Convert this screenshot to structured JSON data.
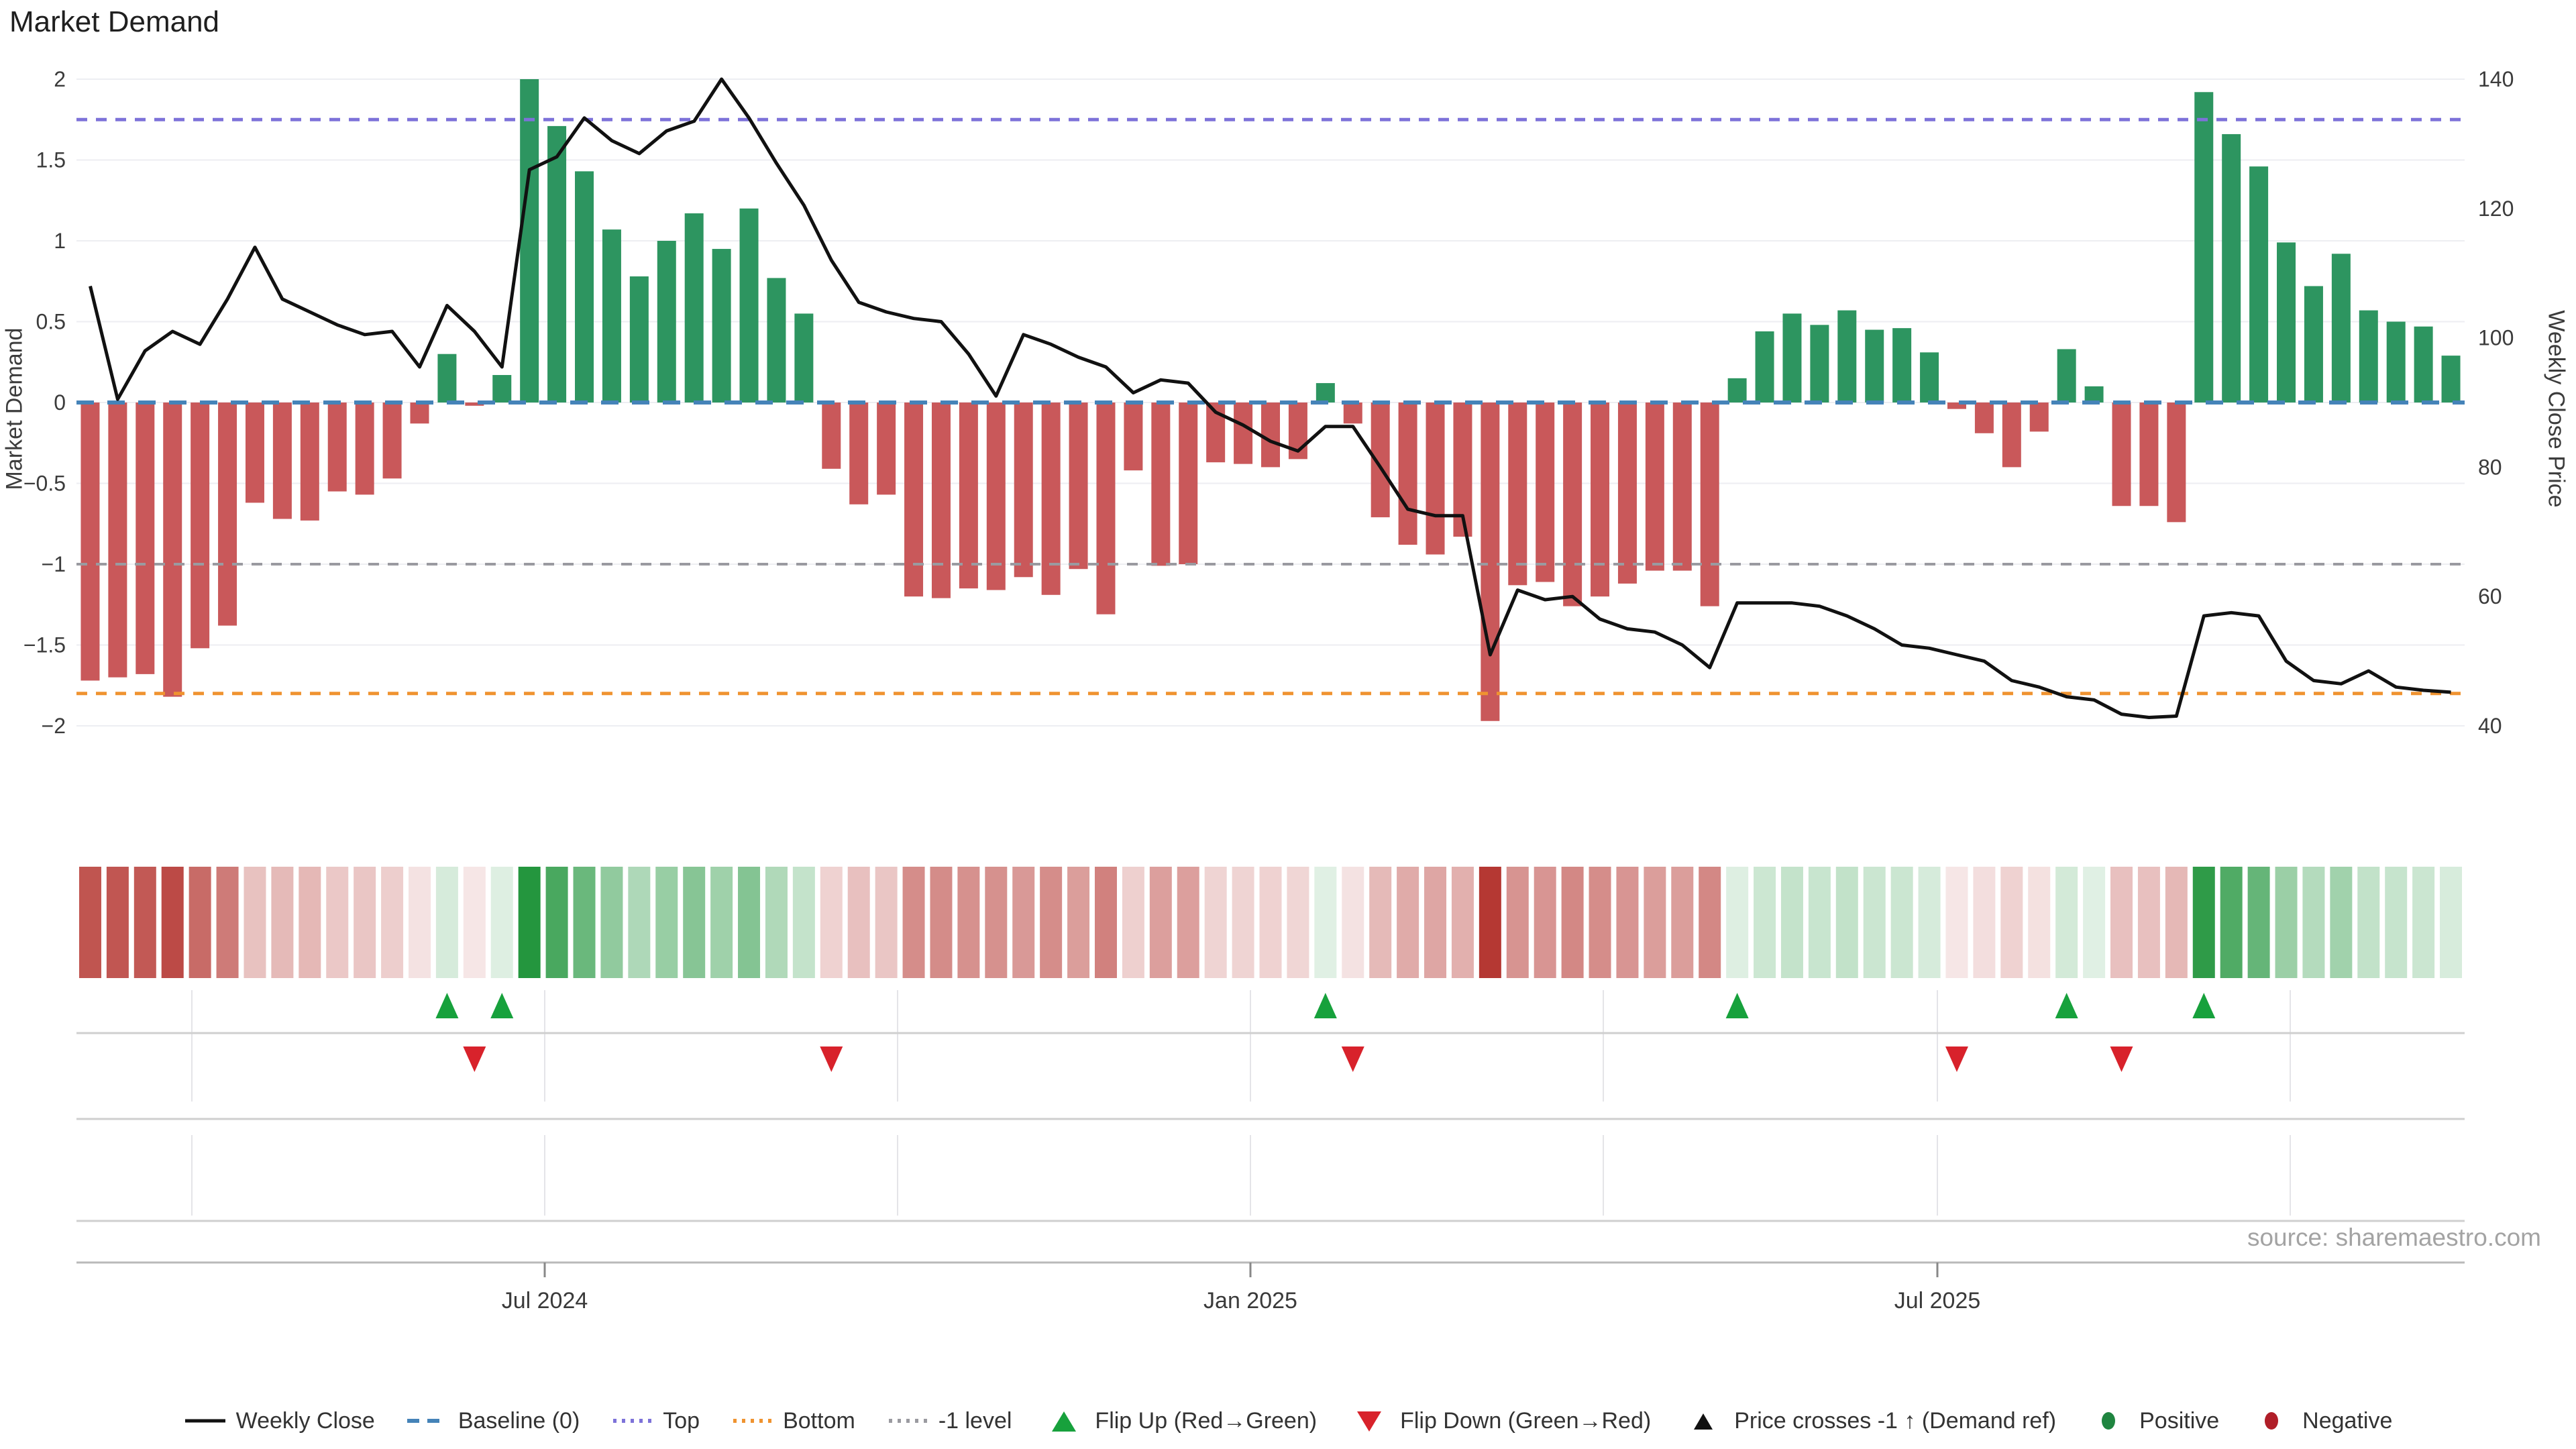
{
  "title": "Market Demand",
  "source": "source: sharemaestro.com",
  "axes": {
    "left_label": "Market Demand",
    "right_label": "Weekly Close Price",
    "left_ticks": [
      "2",
      "1.5",
      "1",
      "0.5",
      "0",
      "−0.5",
      "−1",
      "−1.5",
      "−2"
    ],
    "left_tick_values": [
      2,
      1.5,
      1,
      0.5,
      0,
      -0.5,
      -1,
      -1.5,
      -2
    ],
    "right_ticks": [
      "140",
      "120",
      "100",
      "80",
      "60",
      "40"
    ],
    "right_tick_values": [
      140,
      120,
      100,
      80,
      60,
      40
    ],
    "x_ticks": [
      {
        "label": "Jul 2024",
        "x": 812
      },
      {
        "label": "Jan 2025",
        "x": 1864
      },
      {
        "label": "Jul 2025",
        "x": 2888
      }
    ],
    "quarter_gridlines_x": [
      286,
      812,
      1338,
      1864,
      2390,
      2888,
      3414
    ]
  },
  "colors": {
    "bar_positive": "#2d9560",
    "bar_negative": "#c9585a",
    "price_line": "#111111",
    "baseline": "#4583b8",
    "top_line": "#7d72d9",
    "bottom_line": "#ef9330",
    "minus1_line": "#9a9aa0",
    "gridline": "#edeef2",
    "separator": "#cfcfcf",
    "axis_line": "#b9b9b9",
    "flip_up": "#17a13c",
    "flip_down": "#d8222b",
    "positive_dot": "#1f8540",
    "negative_dot": "#b01e28",
    "heat_green_rgb": "36,150,62",
    "heat_red_rgb": "180,52,47"
  },
  "legend": {
    "items": [
      {
        "label": "Weekly Close",
        "swatch": "line",
        "color": "#111111"
      },
      {
        "label": "Baseline (0)",
        "swatch": "dash",
        "color": "#4583b8"
      },
      {
        "label": "Top",
        "swatch": "dots",
        "color": "#7d72d9"
      },
      {
        "label": "Bottom",
        "swatch": "dots",
        "color": "#ef9330"
      },
      {
        "label": "-1 level",
        "swatch": "dots",
        "color": "#9a9aa0"
      },
      {
        "label": "Flip Up (Red→Green)",
        "swatch": "tri-up",
        "color": "#17a13c"
      },
      {
        "label": "Flip Down (Green→Red)",
        "swatch": "tri-down",
        "color": "#d8222b"
      },
      {
        "label": "Price crosses -1 ↑ (Demand ref)",
        "swatch": "tri-up-small",
        "color": "#111111"
      },
      {
        "label": "Positive",
        "swatch": "dot",
        "color": "#1f8540"
      },
      {
        "label": "Negative",
        "swatch": "dot",
        "color": "#b01e28"
      }
    ]
  },
  "chart_data": {
    "type": "bar",
    "subtype": "combo bar+line+heatmap+event-markers",
    "title": "Market Demand",
    "xlabel": "",
    "ylabel": "Market Demand",
    "y2label": "Weekly Close Price",
    "x_unit": "week",
    "n_weeks": 87,
    "x_tick_labels": [
      "Jul 2024",
      "Jan 2025",
      "Jul 2025"
    ],
    "demand_axis_range": [
      -2.05,
      2.05
    ],
    "price_axis_range": [
      33,
      143
    ],
    "grid": "horizontal every 0.5 demand units; quarterly vertical lines in lower panels",
    "legend_position": "bottom center",
    "ref_lines": {
      "baseline": 0,
      "top": 1.75,
      "bottom": -1.8,
      "minus1": -1
    },
    "series": [
      {
        "name": "Market Demand (bars)",
        "axis": "left",
        "values": [
          -1.72,
          -1.7,
          -1.68,
          -1.82,
          -1.52,
          -1.38,
          -0.62,
          -0.72,
          -0.73,
          -0.55,
          -0.57,
          -0.47,
          -0.13,
          0.3,
          -0.02,
          0.17,
          2.0,
          1.71,
          1.43,
          1.07,
          0.78,
          1.0,
          1.17,
          0.95,
          1.2,
          0.77,
          0.55,
          -0.41,
          -0.63,
          -0.57,
          -1.2,
          -1.21,
          -1.15,
          -1.16,
          -1.08,
          -1.19,
          -1.03,
          -1.31,
          -0.42,
          -1.01,
          -1.0,
          -0.37,
          -0.38,
          -0.4,
          -0.35,
          0.12,
          -0.13,
          -0.71,
          -0.88,
          -0.94,
          -0.83,
          -1.97,
          -1.13,
          -1.11,
          -1.26,
          -1.2,
          -1.12,
          -1.04,
          -1.04,
          -1.26,
          0.15,
          0.44,
          0.55,
          0.48,
          0.57,
          0.45,
          0.46,
          0.31,
          -0.04,
          -0.19,
          -0.4,
          -0.18,
          0.33,
          0.1,
          -0.64,
          -0.64,
          -0.74,
          1.92,
          1.66,
          1.46,
          0.99,
          0.72,
          0.92,
          0.57,
          0.5,
          0.47,
          0.29
        ]
      },
      {
        "name": "Weekly Close",
        "axis": "right",
        "values": [
          108,
          90.5,
          98,
          101,
          99,
          106,
          114,
          106,
          104,
          102,
          100.5,
          101,
          95.5,
          105,
          101,
          95.5,
          126,
          128,
          134,
          130.5,
          128.5,
          132,
          133.5,
          140,
          134,
          127,
          120.5,
          112,
          105.5,
          104,
          103,
          102.5,
          97.5,
          91,
          100.5,
          99,
          97,
          95.5,
          91.5,
          93.5,
          93,
          88.5,
          86.5,
          84,
          82.5,
          86.3,
          86.3,
          80,
          73.5,
          72.5,
          72.5,
          51,
          61,
          59.5,
          60,
          56.5,
          55,
          54.5,
          52.5,
          49,
          59,
          59,
          59,
          58.5,
          57,
          55,
          52.5,
          52,
          51,
          50,
          47,
          46,
          44.5,
          44,
          41.8,
          41.3,
          41.5,
          57,
          57.5,
          57,
          50,
          47,
          46.5,
          48.5,
          46,
          45.5,
          45.2
        ]
      }
    ],
    "heatmap_strip": "mirrors demand bar sign and magnitude (green positive, red negative, opacity scales with |value|)",
    "flip_up_weeks": [
      13,
      15,
      45,
      60,
      72,
      77
    ],
    "flip_down_weeks": [
      14,
      27,
      46,
      68,
      74
    ],
    "price_cross_marker_weeks": [],
    "positive_dot_weeks": [],
    "negative_dot_weeks": []
  }
}
